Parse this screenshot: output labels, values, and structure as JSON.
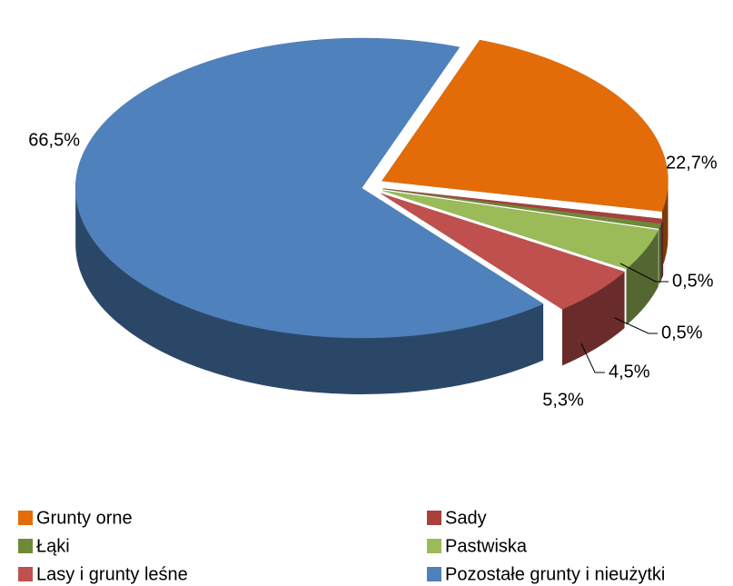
{
  "chart_data": {
    "type": "pie",
    "categories": [
      "Grunty orne",
      "Sady",
      "Łąki",
      "Pastwiska",
      "Lasy i grunty leśne",
      "Pozostałe grunty i nieużytki"
    ],
    "values": [
      22.7,
      0.5,
      0.5,
      4.5,
      5.3,
      66.5
    ],
    "value_labels": [
      "22,7%",
      "0,5%",
      "0,5%",
      "4,5%",
      "5,3%",
      "66,5%"
    ],
    "colors": [
      "#e36c09",
      "#a9403c",
      "#6f8a37",
      "#9bbb59",
      "#c0504d",
      "#4f81bd"
    ],
    "legend": "bottom"
  }
}
